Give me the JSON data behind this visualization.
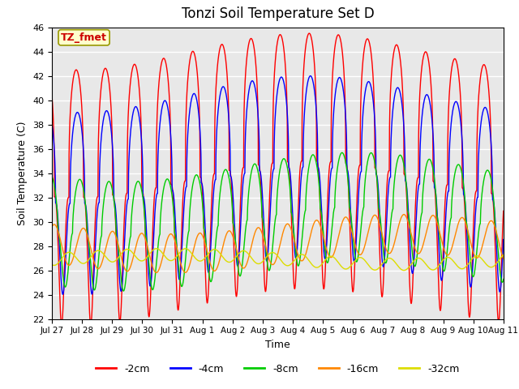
{
  "title": "Tonzi Soil Temperature Set D",
  "xlabel": "Time",
  "ylabel": "Soil Temperature (C)",
  "ylim": [
    22,
    46
  ],
  "yticks": [
    22,
    24,
    26,
    28,
    30,
    32,
    34,
    36,
    38,
    40,
    42,
    44,
    46
  ],
  "xlim_days": 15.5,
  "period_hours": 24,
  "num_points": 5000,
  "series": [
    {
      "label": "-2cm",
      "color": "#ff0000",
      "mean": 33.5,
      "amplitude": 10.5,
      "phase_hours": 14.0,
      "sharpness": 3.0,
      "trend_amp": 1.5,
      "trend_phase": 0.3
    },
    {
      "label": "-4cm",
      "color": "#0000ff",
      "mean": 33.0,
      "amplitude": 7.5,
      "phase_hours": 15.0,
      "sharpness": 2.5,
      "trend_amp": 1.5,
      "trend_phase": 0.3
    },
    {
      "label": "-8cm",
      "color": "#00cc00",
      "mean": 30.0,
      "amplitude": 4.5,
      "phase_hours": 17.0,
      "sharpness": 1.8,
      "trend_amp": 1.2,
      "trend_phase": 0.4
    },
    {
      "label": "-16cm",
      "color": "#ff8800",
      "mean": 28.2,
      "amplitude": 1.6,
      "phase_hours": 20.0,
      "sharpness": 1.0,
      "trend_amp": 0.8,
      "trend_phase": 0.5
    },
    {
      "label": "-32cm",
      "color": "#dddd00",
      "mean": 26.9,
      "amplitude": 0.5,
      "phase_hours": 8.0,
      "sharpness": 1.0,
      "trend_amp": 0.4,
      "trend_phase": 1.0
    }
  ],
  "xtick_labels": [
    "Jul 27",
    "Jul 28",
    "Jul 29",
    "Jul 30",
    "Jul 31",
    "Aug 1",
    "Aug 2",
    "Aug 3",
    "Aug 4",
    "Aug 5",
    "Aug 6",
    "Aug 7",
    "Aug 8",
    "Aug 9",
    "Aug 10",
    "Aug 11"
  ],
  "annotation_text": "TZ_fmet",
  "annotation_color": "#cc0000",
  "annotation_bg": "#ffffcc",
  "background_color": "#e8e8e8",
  "grid_color": "#ffffff",
  "linewidth": 1.0
}
